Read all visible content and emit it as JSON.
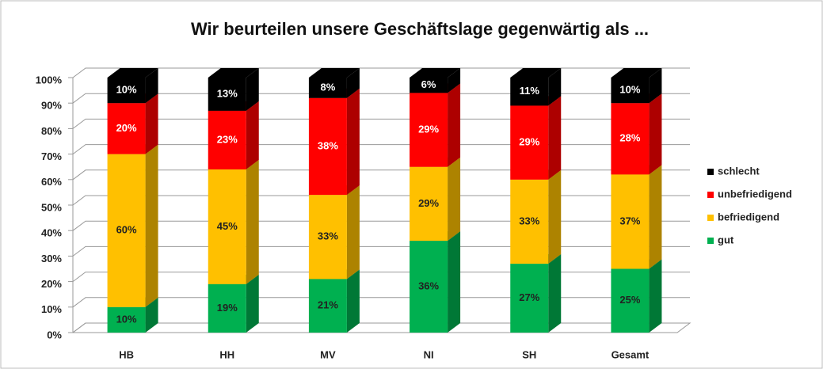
{
  "chart_data": {
    "type": "stacked-bar-3d",
    "title": "Wir beurteilen unsere Geschäftslage gegenwärtig als ...",
    "categories": [
      "HB",
      "HH",
      "MV",
      "NI",
      "SH",
      "Gesamt"
    ],
    "series": [
      {
        "name": "gut",
        "color": "#00b050",
        "values": [
          10,
          19,
          21,
          36,
          27,
          25
        ],
        "value_labels": [
          "10%",
          "19%",
          "21%",
          "36%",
          "27%",
          "25%"
        ]
      },
      {
        "name": "befriedigend",
        "color": "#ffc000",
        "values": [
          60,
          45,
          33,
          29,
          33,
          37
        ],
        "value_labels": [
          "60%",
          "45%",
          "33%",
          "29%",
          "33%",
          "37%"
        ]
      },
      {
        "name": "unbefriedigend",
        "color": "#ff0000",
        "values": [
          20,
          23,
          38,
          29,
          29,
          28
        ],
        "value_labels": [
          "20%",
          "23%",
          "38%",
          "29%",
          "29%",
          "28%"
        ]
      },
      {
        "name": "schlecht",
        "color": "#000000",
        "values": [
          10,
          13,
          8,
          6,
          11,
          10
        ],
        "value_labels": [
          "10%",
          "13%",
          "8%",
          "6%",
          "11%",
          "10%"
        ]
      }
    ],
    "ylim": [
      0,
      100
    ],
    "yticks": [
      {
        "value": 0,
        "label": "0%"
      },
      {
        "value": 10,
        "label": "10%"
      },
      {
        "value": 20,
        "label": "20%"
      },
      {
        "value": 30,
        "label": "30%"
      },
      {
        "value": 40,
        "label": "40%"
      },
      {
        "value": 50,
        "label": "50%"
      },
      {
        "value": 60,
        "label": "60%"
      },
      {
        "value": 70,
        "label": "70%"
      },
      {
        "value": 80,
        "label": "80%"
      },
      {
        "value": 90,
        "label": "90%"
      },
      {
        "value": 100,
        "label": "100%"
      }
    ],
    "grid": true,
    "legend": "right"
  }
}
